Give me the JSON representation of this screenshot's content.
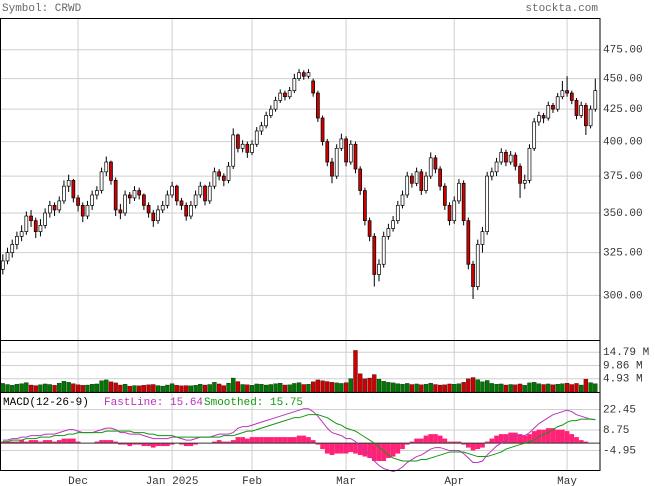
{
  "header": {
    "symbol": "Symbol: CRWD",
    "site": "stockta.com"
  },
  "chart_data": [
    {
      "type": "candlestick",
      "open": [
        315,
        320,
        325,
        330,
        335,
        338,
        348,
        345,
        338,
        342,
        350,
        355,
        352,
        358,
        368,
        372,
        360,
        355,
        348,
        355,
        362,
        365,
        378,
        385,
        372,
        352,
        350,
        362,
        360,
        365,
        362,
        355,
        350,
        345,
        352,
        355,
        362,
        368,
        358,
        355,
        348,
        355,
        362,
        368,
        358,
        368,
        378,
        375,
        372,
        382,
        405,
        395,
        398,
        392,
        398,
        408,
        412,
        420,
        425,
        432,
        438,
        435,
        440,
        450,
        455,
        452,
        448,
        438,
        418,
        400,
        385,
        375,
        395,
        402,
        385,
        398,
        380,
        365,
        345,
        335,
        312,
        318,
        335,
        340,
        345,
        355,
        362,
        375,
        370,
        378,
        365,
        375,
        388,
        380,
        368,
        355,
        345,
        358,
        370,
        345,
        318,
        305,
        330,
        338,
        375,
        378,
        385,
        392,
        385,
        390,
        382,
        370,
        372,
        395,
        415,
        420,
        418,
        428,
        425,
        435,
        440,
        438,
        432,
        420,
        428,
        412,
        425
      ],
      "high": [
        324,
        328,
        333,
        338,
        342,
        351,
        352,
        347,
        346,
        353,
        358,
        357,
        361,
        372,
        376,
        373,
        362,
        357,
        358,
        365,
        368,
        381,
        389,
        386,
        374,
        356,
        365,
        364,
        368,
        367,
        363,
        357,
        352,
        355,
        358,
        365,
        371,
        369,
        360,
        357,
        358,
        365,
        371,
        369,
        371,
        381,
        380,
        377,
        385,
        410,
        406,
        401,
        400,
        401,
        411,
        415,
        423,
        428,
        435,
        441,
        440,
        443,
        454,
        458,
        457,
        458,
        450,
        440,
        420,
        402,
        388,
        398,
        406,
        404,
        401,
        400,
        382,
        367,
        347,
        337,
        321,
        338,
        343,
        348,
        358,
        365,
        378,
        377,
        381,
        380,
        378,
        392,
        390,
        382,
        370,
        357,
        361,
        373,
        372,
        347,
        320,
        333,
        341,
        378,
        381,
        388,
        395,
        394,
        393,
        392,
        384,
        376,
        398,
        418,
        423,
        422,
        431,
        430,
        438,
        448,
        452,
        440,
        434,
        431,
        430,
        428,
        450
      ],
      "low": [
        312,
        318,
        322,
        327,
        332,
        336,
        341,
        334,
        335,
        340,
        347,
        348,
        350,
        356,
        364,
        357,
        351,
        344,
        346,
        352,
        359,
        363,
        375,
        369,
        348,
        346,
        348,
        356,
        358,
        359,
        352,
        347,
        341,
        343,
        350,
        353,
        360,
        355,
        352,
        345,
        346,
        353,
        360,
        355,
        356,
        366,
        372,
        368,
        370,
        380,
        392,
        392,
        388,
        390,
        396,
        405,
        410,
        418,
        423,
        430,
        432,
        433,
        438,
        448,
        449,
        450,
        435,
        415,
        397,
        382,
        370,
        373,
        393,
        382,
        383,
        377,
        362,
        342,
        332,
        305,
        308,
        316,
        333,
        338,
        343,
        353,
        360,
        367,
        368,
        362,
        363,
        373,
        377,
        365,
        352,
        342,
        343,
        356,
        342,
        315,
        298,
        303,
        325,
        336,
        372,
        375,
        383,
        382,
        383,
        379,
        360,
        366,
        370,
        393,
        412,
        414,
        416,
        422,
        423,
        433,
        435,
        429,
        417,
        418,
        405,
        410,
        423
      ],
      "close": [
        320,
        325,
        330,
        335,
        338,
        348,
        345,
        338,
        342,
        350,
        355,
        352,
        358,
        368,
        372,
        360,
        355,
        348,
        355,
        362,
        365,
        378,
        385,
        372,
        352,
        350,
        362,
        360,
        365,
        362,
        355,
        350,
        345,
        352,
        355,
        362,
        368,
        358,
        355,
        348,
        355,
        362,
        368,
        358,
        368,
        378,
        375,
        372,
        382,
        405,
        395,
        398,
        392,
        398,
        408,
        412,
        420,
        425,
        432,
        438,
        435,
        440,
        450,
        455,
        452,
        455,
        438,
        418,
        400,
        385,
        375,
        395,
        402,
        385,
        398,
        380,
        365,
        345,
        335,
        312,
        318,
        335,
        340,
        345,
        355,
        362,
        375,
        370,
        378,
        365,
        375,
        388,
        380,
        368,
        355,
        345,
        358,
        370,
        345,
        318,
        305,
        330,
        338,
        375,
        378,
        385,
        392,
        385,
        390,
        382,
        370,
        372,
        395,
        415,
        420,
        418,
        428,
        425,
        435,
        440,
        438,
        432,
        420,
        428,
        412,
        425,
        440
      ],
      "up_color": "#ffffff",
      "down_color": "#cc0000",
      "log_scale": true,
      "ylim": [
        276,
        504
      ],
      "yticks": [
        {
          "value": 300,
          "label": "300.00"
        },
        {
          "value": 325,
          "label": "325.00"
        },
        {
          "value": 350,
          "label": "350.00"
        },
        {
          "value": 375,
          "label": "375.00"
        },
        {
          "value": 400,
          "label": "400.00"
        },
        {
          "value": 425,
          "label": "425.00"
        },
        {
          "value": 450,
          "label": "450.00"
        },
        {
          "value": 475,
          "label": "475.00"
        }
      ],
      "xlim": [
        -0.6,
        127
      ],
      "xticks": [
        {
          "value": 16,
          "label": "Dec"
        },
        {
          "value": 36,
          "label": "Jan 2025"
        },
        {
          "value": 53,
          "label": "Feb"
        },
        {
          "value": 73,
          "label": "Mar"
        },
        {
          "value": 96,
          "label": "Apr"
        },
        {
          "value": 120,
          "label": "May"
        }
      ],
      "grid": true
    },
    {
      "type": "volume",
      "values": [
        3.2,
        2.8,
        2.5,
        2.9,
        3.1,
        3.5,
        2.6,
        2.4,
        2.7,
        3.0,
        2.8,
        2.5,
        3.3,
        4.0,
        3.6,
        3.1,
        2.7,
        2.5,
        2.6,
        2.9,
        3.0,
        4.2,
        4.5,
        3.8,
        3.4,
        2.6,
        2.9,
        2.2,
        2.4,
        2.3,
        2.5,
        2.7,
        2.8,
        2.4,
        2.2,
        2.6,
        3.1,
        2.5,
        2.3,
        2.4,
        2.3,
        2.5,
        2.9,
        2.6,
        2.8,
        3.6,
        3.0,
        2.4,
        3.3,
        5.2,
        3.9,
        2.8,
        2.7,
        2.5,
        3.0,
        2.9,
        2.6,
        2.8,
        3.1,
        3.3,
        2.6,
        2.7,
        3.2,
        3.5,
        2.8,
        2.9,
        3.8,
        4.5,
        4.2,
        3.9,
        3.6,
        3.4,
        3.2,
        3.5,
        5.0,
        15.5,
        6.8,
        4.9,
        5.2,
        6.5,
        4.8,
        4.0,
        3.6,
        3.4,
        3.1,
        2.9,
        3.2,
        2.8,
        3.0,
        2.7,
        2.9,
        3.3,
        2.8,
        2.6,
        2.7,
        3.0,
        2.9,
        3.1,
        3.6,
        4.9,
        5.4,
        4.6,
        3.8,
        4.3,
        3.2,
        2.9,
        3.0,
        2.6,
        2.8,
        2.7,
        3.0,
        2.5,
        3.4,
        3.6,
        3.1,
        2.8,
        3.0,
        2.7,
        2.9,
        3.1,
        3.3,
        2.8,
        3.2,
        2.6,
        4.8,
        3.5,
        3.1
      ],
      "up_color": "#007700",
      "down_color": "#cc0000",
      "ylim": [
        0,
        19
      ],
      "yticks": [
        {
          "value": 4.93,
          "label": "4.93 M"
        },
        {
          "value": 9.86,
          "label": "9.86 M"
        },
        {
          "value": 14.79,
          "label": "14.79 M"
        }
      ]
    },
    {
      "type": "macd",
      "title": "MACD(12-26-9)",
      "series": [
        {
          "name": "FastLine: 15.64",
          "color": "#bb33bb",
          "values": [
            2,
            2,
            3,
            3,
            4,
            4,
            5,
            5,
            5,
            6,
            6,
            6,
            7,
            8,
            9,
            9,
            8,
            7,
            7,
            7,
            8,
            9,
            10,
            10,
            9,
            7,
            7,
            6,
            6,
            6,
            5,
            4,
            3,
            3,
            3,
            3,
            4,
            4,
            3,
            2,
            2,
            3,
            4,
            4,
            4,
            5,
            6,
            6,
            6,
            7,
            10,
            11,
            11,
            12,
            13,
            14,
            15,
            16,
            17,
            18,
            19,
            20,
            21,
            22,
            23,
            23,
            21,
            18,
            14,
            10,
            7,
            6,
            5,
            3,
            3,
            1,
            -2,
            -5,
            -8,
            -12,
            -15,
            -17,
            -18,
            -19,
            -18,
            -16,
            -13,
            -11,
            -9,
            -8,
            -6,
            -4,
            -3,
            -3,
            -4,
            -5,
            -5,
            -5,
            -7,
            -10,
            -13,
            -13,
            -12,
            -8,
            -5,
            -2,
            0,
            2,
            4,
            5,
            5,
            5,
            7,
            10,
            13,
            15,
            17,
            19,
            20,
            21,
            22,
            21,
            19,
            18,
            17,
            16,
            15.64
          ]
        },
        {
          "name": "Smoothed: 15.75",
          "color": "#119911",
          "values": [
            1,
            1,
            2,
            2,
            2,
            3,
            3,
            3,
            4,
            4,
            4,
            5,
            5,
            5,
            6,
            6,
            7,
            7,
            7,
            7,
            7,
            7,
            8,
            8,
            8,
            8,
            8,
            8,
            7,
            7,
            7,
            6,
            6,
            5,
            5,
            5,
            5,
            4,
            4,
            4,
            4,
            4,
            4,
            4,
            4,
            4,
            4,
            5,
            5,
            5,
            6,
            7,
            8,
            8,
            9,
            10,
            11,
            12,
            13,
            14,
            15,
            16,
            17,
            17,
            18,
            19,
            19,
            19,
            18,
            17,
            15,
            13,
            12,
            10,
            9,
            8,
            6,
            4,
            2,
            0,
            -3,
            -5,
            -8,
            -10,
            -11,
            -12,
            -12,
            -12,
            -12,
            -11,
            -11,
            -10,
            -9,
            -8,
            -7,
            -6,
            -6,
            -6,
            -6,
            -7,
            -8,
            -9,
            -9,
            -9,
            -8,
            -7,
            -6,
            -4,
            -3,
            -2,
            -1,
            0,
            1,
            2,
            4,
            6,
            7,
            9,
            11,
            12,
            14,
            15,
            15,
            16,
            16,
            16,
            15.75
          ]
        }
      ],
      "histogram": {
        "color": "#ff2277",
        "values": [
          1,
          1,
          1,
          1,
          2,
          1,
          2,
          2,
          1,
          2,
          2,
          1,
          2,
          3,
          3,
          3,
          1,
          0,
          0,
          0,
          1,
          2,
          2,
          2,
          1,
          -1,
          -1,
          -2,
          -1,
          -1,
          -2,
          -2,
          -3,
          -2,
          -2,
          -2,
          -1,
          0,
          -1,
          -2,
          -2,
          -1,
          0,
          0,
          0,
          1,
          2,
          1,
          1,
          2,
          4,
          4,
          3,
          4,
          4,
          4,
          4,
          4,
          4,
          4,
          4,
          4,
          4,
          5,
          5,
          4,
          2,
          -1,
          -4,
          -7,
          -8,
          -7,
          -7,
          -7,
          -6,
          -7,
          -8,
          -9,
          -10,
          -12,
          -12,
          -12,
          -10,
          -9,
          -7,
          -4,
          -1,
          1,
          3,
          3,
          5,
          6,
          6,
          5,
          3,
          1,
          1,
          1,
          -1,
          -3,
          -5,
          -4,
          -3,
          1,
          3,
          5,
          6,
          6,
          7,
          7,
          6,
          5,
          6,
          8,
          9,
          9,
          10,
          10,
          9,
          9,
          8,
          6,
          4,
          2,
          1,
          0,
          -0.11
        ]
      },
      "ylim": [
        -18,
        33.5
      ],
      "yticks": [
        -4.95,
        8.75,
        22.45
      ]
    }
  ]
}
